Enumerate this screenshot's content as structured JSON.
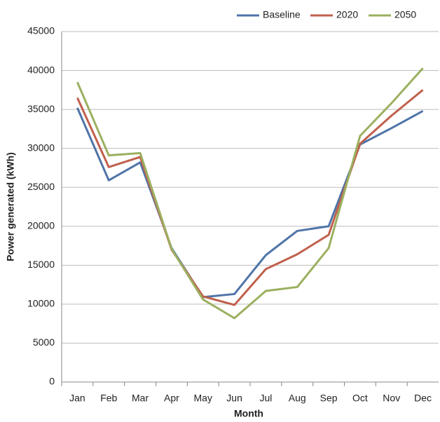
{
  "chart_data": {
    "type": "line",
    "xlabel": "Month",
    "ylabel": "Power generated (kWh)",
    "categories": [
      "Jan",
      "Feb",
      "Mar",
      "Apr",
      "May",
      "Jun",
      "Jul",
      "Aug",
      "Sep",
      "Oct",
      "Nov",
      "Dec"
    ],
    "series": [
      {
        "name": "Baseline",
        "color": "#4f74a8",
        "values": [
          35200,
          25900,
          28200,
          17200,
          10900,
          11300,
          16300,
          19400,
          20000,
          30500,
          32600,
          34800
        ]
      },
      {
        "name": "2020",
        "color": "#c0604d",
        "values": [
          36500,
          27600,
          28900,
          17000,
          11000,
          9900,
          14500,
          16400,
          18900,
          30600,
          34200,
          37500
        ]
      },
      {
        "name": "2050",
        "color": "#9bb060",
        "values": [
          38500,
          29100,
          29400,
          17100,
          10600,
          8200,
          11700,
          12200,
          17200,
          31600,
          35800,
          40300
        ]
      }
    ],
    "ylim": [
      0,
      45000
    ],
    "yticks": [
      0,
      5000,
      10000,
      15000,
      20000,
      25000,
      30000,
      35000,
      40000,
      45000
    ],
    "grid": true,
    "legend": "top"
  }
}
